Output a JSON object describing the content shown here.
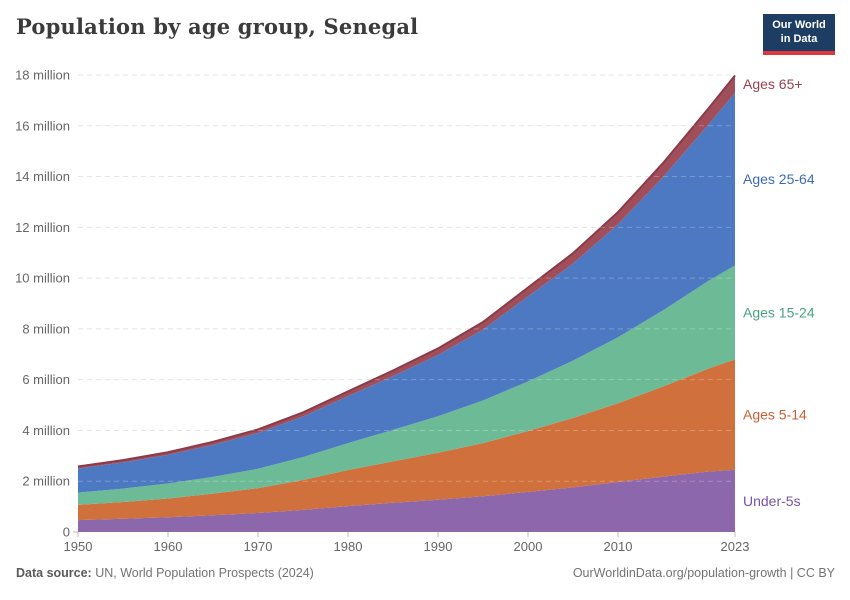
{
  "header": {
    "title": "Population by age group, Senegal",
    "logo": {
      "line1": "Our World",
      "line2": "in Data"
    }
  },
  "footer": {
    "source_label": "Data source:",
    "source_text": " UN, World Population Prospects (2024)",
    "credit": "OurWorldinData.org/population-growth | CC BY"
  },
  "colors": {
    "title_text": "#3b3b3b",
    "axis_text": "#666666",
    "gridline": "#dcdcdc",
    "grid_overlay": "rgba(255,255,255,0.25)",
    "tick_mark": "#bdbdbd",
    "logo_bg": "#1d3d63",
    "logo_bar": "#e0373e"
  },
  "chart_data": {
    "type": "area",
    "stacked": true,
    "title": "Population by age group, Senegal",
    "xlabel": "",
    "ylabel": "",
    "unit": "million people",
    "grid": "dashed",
    "legend_position": "right-edge-labels",
    "xlim": [
      1950,
      2023
    ],
    "ylim": [
      0,
      18
    ],
    "x": [
      1950,
      1955,
      1960,
      1965,
      1970,
      1975,
      1980,
      1985,
      1990,
      1995,
      2000,
      2005,
      2010,
      2015,
      2020,
      2023
    ],
    "x_ticks": [
      1950,
      1960,
      1970,
      1980,
      1990,
      2000,
      2010,
      2023
    ],
    "y_ticks": [
      {
        "v": 0,
        "label": "0"
      },
      {
        "v": 2,
        "label": "2 million"
      },
      {
        "v": 4,
        "label": "4 million"
      },
      {
        "v": 6,
        "label": "6 million"
      },
      {
        "v": 8,
        "label": "8 million"
      },
      {
        "v": 10,
        "label": "10 million"
      },
      {
        "v": 12,
        "label": "12 million"
      },
      {
        "v": 14,
        "label": "14 million"
      },
      {
        "v": 16,
        "label": "16 million"
      },
      {
        "v": 18,
        "label": "18 million"
      }
    ],
    "series": [
      {
        "name": "Under-5s",
        "slug": "under-5s",
        "color": "#8d67ac",
        "label_color": "#7a52a5",
        "values": [
          0.47,
          0.52,
          0.58,
          0.66,
          0.75,
          0.87,
          1.02,
          1.15,
          1.27,
          1.41,
          1.58,
          1.76,
          1.97,
          2.18,
          2.38,
          2.45
        ]
      },
      {
        "name": "Ages 5-14",
        "slug": "ages-5-14",
        "color": "#d0703c",
        "label_color": "#ca5f36",
        "values": [
          0.6,
          0.66,
          0.74,
          0.85,
          0.98,
          1.18,
          1.42,
          1.63,
          1.85,
          2.09,
          2.4,
          2.73,
          3.1,
          3.55,
          4.05,
          4.35
        ]
      },
      {
        "name": "Ages 15-24",
        "slug": "ages-15-24",
        "color": "#6dbb96",
        "label_color": "#4ba281",
        "values": [
          0.48,
          0.53,
          0.59,
          0.66,
          0.76,
          0.9,
          1.06,
          1.24,
          1.44,
          1.68,
          1.95,
          2.26,
          2.6,
          3.0,
          3.45,
          3.7
        ]
      },
      {
        "name": "Ages 25-64",
        "slug": "ages-25-64",
        "color": "#4d79c3",
        "label_color": "#3c6bb5",
        "values": [
          0.95,
          1.03,
          1.13,
          1.26,
          1.41,
          1.6,
          1.85,
          2.12,
          2.41,
          2.79,
          3.35,
          3.82,
          4.45,
          5.25,
          6.15,
          6.8
        ]
      },
      {
        "name": "Ages 65+",
        "slug": "ages-65plus",
        "color": "#a04e5a",
        "label_color": "#98414f",
        "top_line_color": "#8b3a48",
        "values": [
          0.08,
          0.09,
          0.1,
          0.12,
          0.14,
          0.16,
          0.19,
          0.22,
          0.26,
          0.3,
          0.35,
          0.41,
          0.48,
          0.55,
          0.63,
          0.68
        ]
      }
    ]
  }
}
